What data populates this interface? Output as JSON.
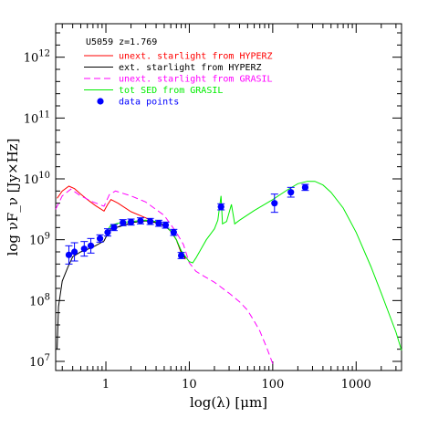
{
  "chart_data": {
    "type": "line",
    "title": "",
    "xlabel": "log(λ) [μm]",
    "ylabel": "log νF_ν [Jy×Hz]",
    "x_scale": "log",
    "y_scale": "log",
    "xlim": [
      0.25,
      3500
    ],
    "ylim": [
      6.85,
      12.55
    ],
    "x_tick_labels": [
      "1",
      "10",
      "100",
      "1000"
    ],
    "y_tick_labels": [
      {
        "base": "10",
        "exp": "7"
      },
      {
        "base": "10",
        "exp": "8"
      },
      {
        "base": "10",
        "exp": "9"
      },
      {
        "base": "10",
        "exp": "10"
      },
      {
        "base": "10",
        "exp": "11"
      },
      {
        "base": "10",
        "exp": "12"
      }
    ],
    "legend_title": "U5059 z=1.769",
    "legend_position": "top-left",
    "series": [
      {
        "name": "unext. starlight from HYPERZ",
        "color": "#ff0000",
        "style": "solid",
        "points": [
          [
            0.26,
            9.68
          ],
          [
            0.3,
            9.8
          ],
          [
            0.36,
            9.88
          ],
          [
            0.42,
            9.84
          ],
          [
            0.5,
            9.75
          ],
          [
            0.6,
            9.66
          ],
          [
            0.75,
            9.56
          ],
          [
            0.95,
            9.47
          ],
          [
            1.05,
            9.58
          ],
          [
            1.15,
            9.66
          ],
          [
            1.4,
            9.6
          ],
          [
            2.0,
            9.46
          ],
          [
            3.0,
            9.36
          ],
          [
            4.0,
            9.28
          ],
          [
            5.0,
            9.23
          ],
          [
            6.0,
            9.14
          ],
          [
            7.0,
            9.0
          ],
          [
            8.0,
            8.78
          ],
          [
            9.0,
            8.68
          ]
        ]
      },
      {
        "name": "ext. starlight from HYPERZ",
        "color": "#000000",
        "style": "solid",
        "points": [
          [
            0.26,
            7.2
          ],
          [
            0.27,
            7.9
          ],
          [
            0.3,
            8.32
          ],
          [
            0.35,
            8.55
          ],
          [
            0.4,
            8.72
          ],
          [
            0.5,
            8.8
          ],
          [
            0.6,
            8.84
          ],
          [
            0.75,
            8.9
          ],
          [
            0.95,
            8.98
          ],
          [
            1.05,
            9.1
          ],
          [
            1.15,
            9.18
          ],
          [
            1.5,
            9.22
          ],
          [
            2.0,
            9.28
          ],
          [
            3.0,
            9.31
          ],
          [
            4.0,
            9.28
          ],
          [
            5.0,
            9.24
          ],
          [
            6.0,
            9.14
          ],
          [
            7.0,
            9.0
          ],
          [
            8.0,
            8.8
          ],
          [
            9.0,
            8.7
          ]
        ]
      },
      {
        "name": "unext. starlight from GRASIL",
        "color": "#ff00ff",
        "style": "dashed",
        "points": [
          [
            0.25,
            9.5
          ],
          [
            0.3,
            9.72
          ],
          [
            0.38,
            9.83
          ],
          [
            0.5,
            9.72
          ],
          [
            0.7,
            9.62
          ],
          [
            0.95,
            9.55
          ],
          [
            1.1,
            9.74
          ],
          [
            1.3,
            9.8
          ],
          [
            2.0,
            9.72
          ],
          [
            3.0,
            9.62
          ],
          [
            5.0,
            9.4
          ],
          [
            7.0,
            9.12
          ],
          [
            8.5,
            8.92
          ],
          [
            10.0,
            8.62
          ],
          [
            12.0,
            8.48
          ],
          [
            15.0,
            8.4
          ],
          [
            20.0,
            8.3
          ],
          [
            30.0,
            8.12
          ],
          [
            40.0,
            7.98
          ],
          [
            50.0,
            7.84
          ],
          [
            60.0,
            7.66
          ],
          [
            70.0,
            7.5
          ],
          [
            85.0,
            7.22
          ],
          [
            100.0,
            6.96
          ]
        ]
      },
      {
        "name": "tot SED from GRASIL",
        "color": "#00ee00",
        "style": "solid",
        "points": [
          [
            1.0,
            9.12
          ],
          [
            1.15,
            9.24
          ],
          [
            1.5,
            9.28
          ],
          [
            2.0,
            9.3
          ],
          [
            3.0,
            9.32
          ],
          [
            4.0,
            9.3
          ],
          [
            5.0,
            9.24
          ],
          [
            6.0,
            9.14
          ],
          [
            7.0,
            9.0
          ],
          [
            8.0,
            8.82
          ],
          [
            9.0,
            8.72
          ],
          [
            10.0,
            8.64
          ],
          [
            11.0,
            8.62
          ],
          [
            12.0,
            8.7
          ],
          [
            14.0,
            8.86
          ],
          [
            16.0,
            9.0
          ],
          [
            20.0,
            9.18
          ],
          [
            22.0,
            9.32
          ],
          [
            24.0,
            9.72
          ],
          [
            25.0,
            9.26
          ],
          [
            28.0,
            9.3
          ],
          [
            32.0,
            9.58
          ],
          [
            35.0,
            9.26
          ],
          [
            40.0,
            9.32
          ],
          [
            60.0,
            9.48
          ],
          [
            100.0,
            9.66
          ],
          [
            150.0,
            9.82
          ],
          [
            200.0,
            9.92
          ],
          [
            260.0,
            9.96
          ],
          [
            320.0,
            9.96
          ],
          [
            400.0,
            9.9
          ],
          [
            500.0,
            9.78
          ],
          [
            700.0,
            9.52
          ],
          [
            1000.0,
            9.12
          ],
          [
            1500.0,
            8.56
          ],
          [
            2000.0,
            8.12
          ],
          [
            3000.0,
            7.48
          ],
          [
            3500.0,
            7.18
          ]
        ]
      },
      {
        "name": "data points",
        "color": "#0000ff",
        "style": "markers",
        "points": [
          [
            0.36,
            8.75
          ],
          [
            0.42,
            8.8
          ],
          [
            0.55,
            8.85
          ],
          [
            0.66,
            8.9
          ],
          [
            0.85,
            9.02
          ],
          [
            1.05,
            9.12
          ],
          [
            1.25,
            9.2
          ],
          [
            1.6,
            9.28
          ],
          [
            2.0,
            9.29
          ],
          [
            2.6,
            9.31
          ],
          [
            3.4,
            9.3
          ],
          [
            4.3,
            9.27
          ],
          [
            5.2,
            9.24
          ],
          [
            6.5,
            9.12
          ],
          [
            8.0,
            8.74
          ],
          [
            24.0,
            9.54
          ],
          [
            105.0,
            9.6
          ],
          [
            165.0,
            9.78
          ],
          [
            245.0,
            9.86
          ]
        ],
        "yerr": [
          0.15,
          0.15,
          0.12,
          0.12,
          0.06,
          0.06,
          0.05,
          0.05,
          0.05,
          0.05,
          0.05,
          0.05,
          0.05,
          0.05,
          0.05,
          0.05,
          0.15,
          0.08,
          0.05
        ]
      }
    ]
  }
}
